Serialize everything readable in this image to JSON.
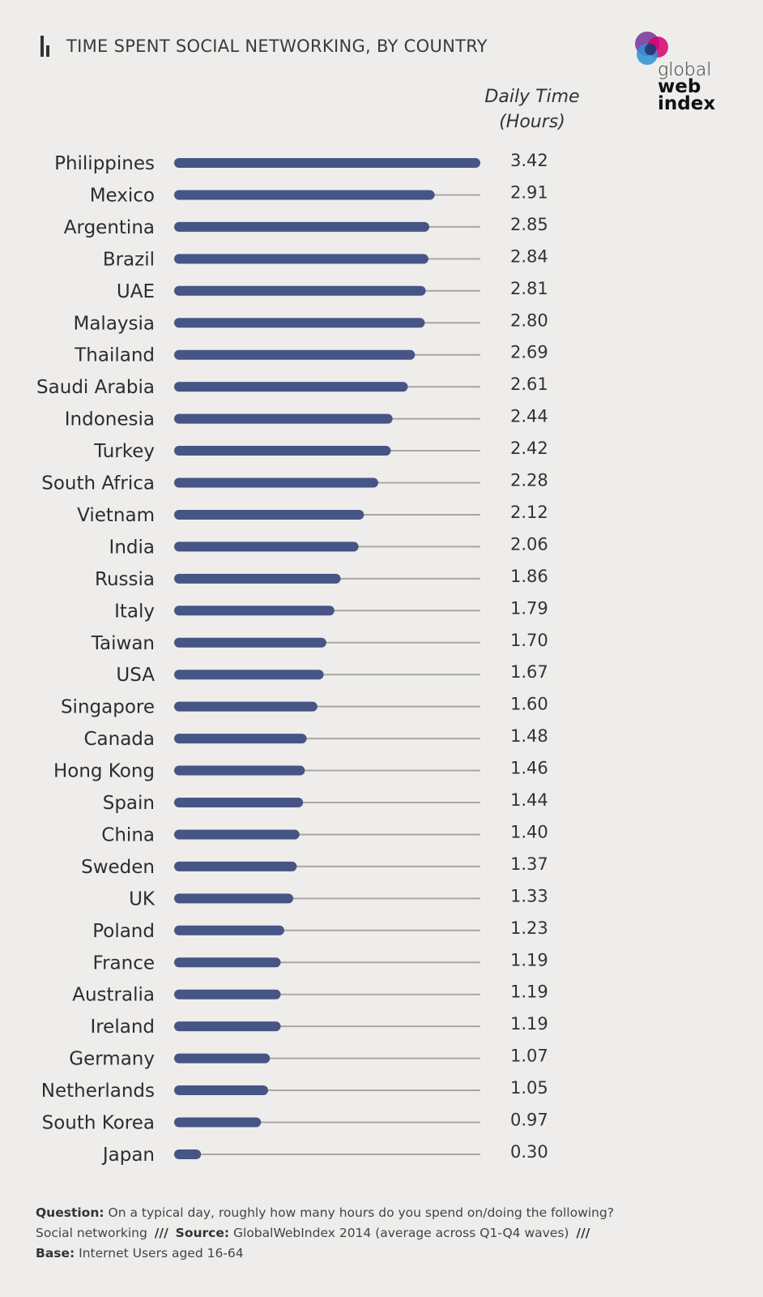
{
  "title": "TIME SPENT SOCIAL NETWORKING, BY COUNTRY",
  "logo": {
    "line1": "global",
    "line2": "web",
    "line3": "index"
  },
  "column_header": {
    "line1": "Daily Time",
    "line2": "(Hours)"
  },
  "colors": {
    "bar": "#465585",
    "track": "#a9a7a6",
    "background": "#eeedeb"
  },
  "chart_data": {
    "type": "bar",
    "orientation": "horizontal",
    "title": "TIME SPENT SOCIAL NETWORKING, BY COUNTRY",
    "value_label": "Daily Time (Hours)",
    "xlim": [
      0,
      3.42
    ],
    "grid": false,
    "categories": [
      "Philippines",
      "Mexico",
      "Argentina",
      "Brazil",
      "UAE",
      "Malaysia",
      "Thailand",
      "Saudi Arabia",
      "Indonesia",
      "Turkey",
      "South Africa",
      "Vietnam",
      "India",
      "Russia",
      "Italy",
      "Taiwan",
      "USA",
      "Singapore",
      "Canada",
      "Hong Kong",
      "Spain",
      "China",
      "Sweden",
      "UK",
      "Poland",
      "France",
      "Australia",
      "Ireland",
      "Germany",
      "Netherlands",
      "South Korea",
      "Japan"
    ],
    "values": [
      3.42,
      2.91,
      2.85,
      2.84,
      2.81,
      2.8,
      2.69,
      2.61,
      2.44,
      2.42,
      2.28,
      2.12,
      2.06,
      1.86,
      1.79,
      1.7,
      1.67,
      1.6,
      1.48,
      1.46,
      1.44,
      1.4,
      1.37,
      1.33,
      1.23,
      1.19,
      1.19,
      1.19,
      1.07,
      1.05,
      0.97,
      0.3
    ],
    "value_labels": [
      "3.42",
      "2.91",
      "2.85",
      "2.84",
      "2.81",
      "2.80",
      "2.69",
      "2.61",
      "2.44",
      "2.42",
      "2.28",
      "2.12",
      "2.06",
      "1.86",
      "1.79",
      "1.70",
      "1.67",
      "1.60",
      "1.48",
      "1.46",
      "1.44",
      "1.40",
      "1.37",
      "1.33",
      "1.23",
      "1.19",
      "1.19",
      "1.19",
      "1.07",
      "1.05",
      "0.97",
      "0.30"
    ]
  },
  "footer": {
    "question_label": "Question:",
    "question_text": "On a typical day, roughly how many hours do you spend on/doing the following? Social networking",
    "separator": "///",
    "source_label": "Source:",
    "source_text": "GlobalWebIndex 2014 (average across Q1-Q4 waves)",
    "base_label": "Base:",
    "base_text": "Internet Users aged 16-64"
  }
}
